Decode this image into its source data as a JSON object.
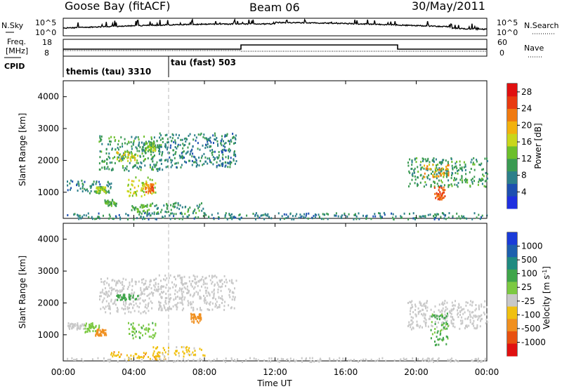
{
  "header": {
    "station": "Goose Bay (fitACF)",
    "beam": "Beam 06",
    "date": "30/May/2011"
  },
  "strip_labels": {
    "nsky": "N.Sky",
    "nsearch": "N.Search",
    "freq_top": "Freq.",
    "freq_unit": "[MHz]",
    "nave": "Nave",
    "cpid": "CPID"
  },
  "strip_ticks": {
    "nsky_hi": "10^5",
    "nsky_lo": "10^0",
    "freq_hi": "18",
    "freq_lo": "8",
    "nave_hi": "60",
    "nave_lo": "0"
  },
  "cpid": {
    "first": "themis (tau) 3310",
    "second": "tau (fast) 503"
  },
  "x_axis": {
    "label": "Time UT",
    "ticks": [
      "00:00",
      "04:00",
      "08:00",
      "12:00",
      "16:00",
      "20:00",
      "00:00"
    ]
  },
  "colors": {
    "power_scale": [
      "#1f2fe0",
      "#1d4fb0",
      "#2c7f8a",
      "#3a9a52",
      "#6cbf2a",
      "#c9d61a",
      "#f2b10d",
      "#f07a10",
      "#e83a10",
      "#e01010"
    ],
    "velocity_scale": [
      "#1a3bd8",
      "#1d5fae",
      "#1f8a80",
      "#3fa54a",
      "#7cc942",
      "#c8c8c8",
      "#f0c010",
      "#f09020",
      "#e85010",
      "#e01010"
    ]
  },
  "chart_data": [
    {
      "type": "heatmap",
      "panel": "power",
      "ylabel": "Slant Range [km]",
      "yticks": [
        1000,
        2000,
        3000,
        4000
      ],
      "ylim": [
        180,
        4500
      ],
      "xlim_hours": [
        0,
        24
      ],
      "colorbar": {
        "label": "Power [dB]",
        "ticks": [
          "4",
          "8",
          "12",
          "16",
          "20",
          "24",
          "28"
        ],
        "range": [
          0,
          30
        ]
      },
      "echo_regions": [
        {
          "t0": 0.2,
          "t1": 2.8,
          "r0": 1000,
          "r1": 1400,
          "level": 8
        },
        {
          "t0": 1.8,
          "t1": 2.4,
          "r0": 1000,
          "r1": 1200,
          "level": 14
        },
        {
          "t0": 2.0,
          "t1": 5.6,
          "r0": 1700,
          "r1": 2800,
          "level": 10
        },
        {
          "t0": 3.0,
          "t1": 4.2,
          "r0": 2000,
          "r1": 2300,
          "level": 16
        },
        {
          "t0": 4.6,
          "t1": 5.2,
          "r0": 2300,
          "r1": 2600,
          "level": 14
        },
        {
          "t0": 5.4,
          "t1": 9.8,
          "r0": 1800,
          "r1": 2900,
          "level": 8
        },
        {
          "t0": 3.6,
          "t1": 5.2,
          "r0": 900,
          "r1": 1500,
          "level": 16
        },
        {
          "t0": 4.6,
          "t1": 5.1,
          "r0": 1000,
          "r1": 1300,
          "level": 22
        },
        {
          "t0": 2.3,
          "t1": 3.0,
          "r0": 600,
          "r1": 800,
          "level": 12
        },
        {
          "t0": 3.8,
          "t1": 5.0,
          "r0": 400,
          "r1": 650,
          "level": 12
        },
        {
          "t0": 5.0,
          "t1": 8.0,
          "r0": 350,
          "r1": 700,
          "level": 10
        },
        {
          "t0": 0.2,
          "t1": 24.0,
          "r0": 180,
          "r1": 380,
          "level": 8
        },
        {
          "t0": 19.5,
          "t1": 24.0,
          "r0": 1200,
          "r1": 2100,
          "level": 10
        },
        {
          "t0": 20.4,
          "t1": 21.8,
          "r0": 1500,
          "r1": 1900,
          "level": 20
        },
        {
          "t0": 21.0,
          "t1": 21.6,
          "r0": 800,
          "r1": 1200,
          "level": 24
        }
      ]
    },
    {
      "type": "heatmap",
      "panel": "velocity",
      "ylabel": "Slant Range [km]",
      "yticks": [
        1000,
        2000,
        3000,
        4000
      ],
      "ylim": [
        180,
        4500
      ],
      "xlim_hours": [
        0,
        24
      ],
      "colorbar": {
        "label": "Velocity [m s^-1]",
        "ticks": [
          "1000",
          "500",
          "100",
          "25",
          "-25",
          "-100",
          "-500",
          "-1000"
        ]
      },
      "echo_regions": [
        {
          "t0": 0.2,
          "t1": 1.2,
          "r0": 1200,
          "r1": 1400,
          "vel": 0
        },
        {
          "t0": 1.2,
          "t1": 2.0,
          "r0": 1100,
          "r1": 1400,
          "vel": 80
        },
        {
          "t0": 1.8,
          "t1": 2.4,
          "r0": 1000,
          "r1": 1200,
          "vel": -150
        },
        {
          "t0": 2.0,
          "t1": 5.6,
          "r0": 1700,
          "r1": 2800,
          "vel": 0
        },
        {
          "t0": 3.0,
          "t1": 4.2,
          "r0": 2100,
          "r1": 2300,
          "vel": 120
        },
        {
          "t0": 5.4,
          "t1": 9.8,
          "r0": 1800,
          "r1": 2900,
          "vel": 0
        },
        {
          "t0": 3.6,
          "t1": 5.2,
          "r0": 900,
          "r1": 1400,
          "vel": 90
        },
        {
          "t0": 7.2,
          "t1": 7.8,
          "r0": 1400,
          "r1": 1700,
          "vel": -160
        },
        {
          "t0": 2.6,
          "t1": 6.0,
          "r0": 250,
          "r1": 500,
          "vel": -90
        },
        {
          "t0": 5.0,
          "t1": 8.0,
          "r0": 350,
          "r1": 650,
          "vel": -40
        },
        {
          "t0": 0.2,
          "t1": 24.0,
          "r0": 180,
          "r1": 300,
          "vel": 0
        },
        {
          "t0": 19.5,
          "t1": 24.0,
          "r0": 1200,
          "r1": 2100,
          "vel": 0
        },
        {
          "t0": 20.8,
          "t1": 21.8,
          "r0": 700,
          "r1": 1700,
          "vel": 110
        }
      ]
    }
  ]
}
